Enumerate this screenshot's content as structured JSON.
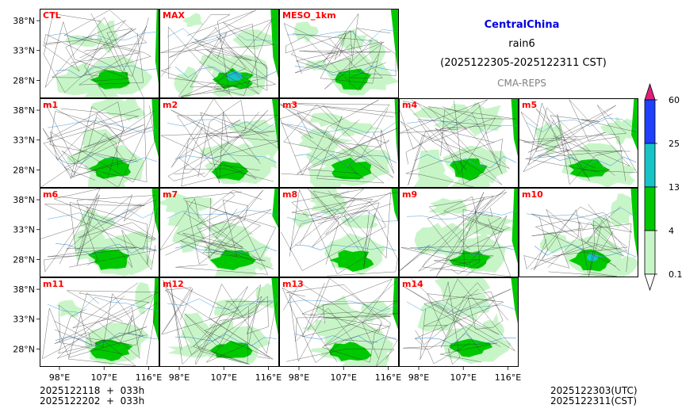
{
  "header": {
    "region": "CentralChina",
    "variable": "rain6",
    "period": "(2025122305-2025122311 CST)",
    "source": "CMA-REPS"
  },
  "panels": [
    {
      "label": "CTL"
    },
    {
      "label": "MAX"
    },
    {
      "label": "MESO_1km"
    },
    {
      "label": "m1"
    },
    {
      "label": "m2"
    },
    {
      "label": "m3"
    },
    {
      "label": "m4"
    },
    {
      "label": "m5"
    },
    {
      "label": "m6"
    },
    {
      "label": "m7"
    },
    {
      "label": "m8"
    },
    {
      "label": "m9"
    },
    {
      "label": "m10"
    },
    {
      "label": "m11"
    },
    {
      "label": "m12"
    },
    {
      "label": "m13"
    },
    {
      "label": "m14"
    }
  ],
  "footer": {
    "init_utc": "2025122118  +  033h",
    "init_cst": "2025122202  +  033h",
    "valid_utc": "2025122303(UTC)",
    "valid_cst": "2025122311(CST)"
  },
  "colors": {
    "light_green": "#c8f5c8",
    "green": "#00c800",
    "cyan": "#16c4c8",
    "blue": "#2040ff",
    "pink": "#e0207a",
    "river": "#4aa0e0",
    "border": "#333333"
  },
  "chart_data": {
    "type": "heatmap",
    "title": "CentralChina rain6 (2025122305-2025122311 CST)",
    "subtitle": "CMA-REPS",
    "x_ticks": [
      "98°E",
      "107°E",
      "116°E"
    ],
    "y_ticks": [
      "38°N",
      "33°N",
      "28°N"
    ],
    "x_range": [
      94,
      118
    ],
    "y_range": [
      25,
      40
    ],
    "colorbar": {
      "levels": [
        0.1,
        4,
        13,
        25,
        60
      ],
      "tick_labels": [
        "0.1",
        "4",
        "13",
        "25",
        "60"
      ],
      "colors": [
        "#c8f5c8",
        "#00c800",
        "#16c4c8",
        "#2040ff"
      ],
      "extend_max_color": "#e0207a",
      "extend_min_color": "#ffffff"
    },
    "panels": [
      "CTL",
      "MAX",
      "MESO_1km",
      "m1",
      "m2",
      "m3",
      "m4",
      "m5",
      "m6",
      "m7",
      "m8",
      "m9",
      "m10",
      "m11",
      "m12",
      "m13",
      "m14"
    ]
  }
}
